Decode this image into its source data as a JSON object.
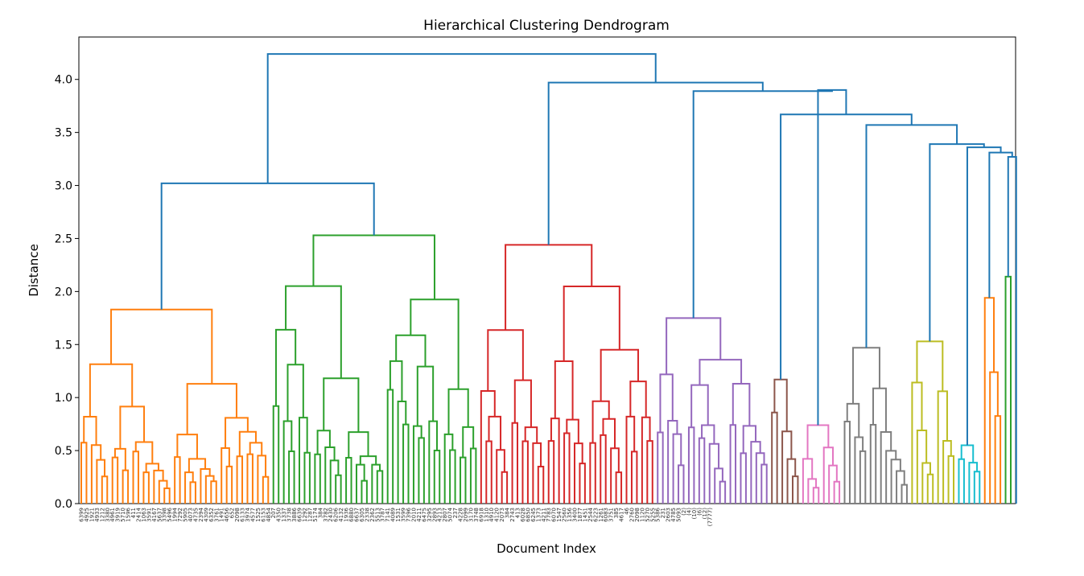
{
  "chart_data": {
    "type": "dendrogram",
    "title": "Hierarchical Clustering Dendrogram",
    "xlabel": "Document Index",
    "ylabel": "Distance",
    "ylim": [
      0,
      4.4
    ],
    "yticks": [
      0.0,
      0.5,
      1.0,
      1.5,
      2.0,
      2.5,
      3.0,
      3.5,
      4.0
    ],
    "ytick_labels": [
      "0.0",
      "0.5",
      "1.0",
      "1.5",
      "2.0",
      "2.5",
      "3.0",
      "3.5",
      "4.0"
    ],
    "grid": false,
    "above_threshold_color": "#1f77b4",
    "clusters": [
      {
        "color": "#ff7f0e",
        "leaves": 37,
        "root_height": 1.83
      },
      {
        "color": "#2ca02c",
        "leaves": 40,
        "root_height": 2.53
      },
      {
        "color": "#d62728",
        "leaves": 34,
        "root_height": 2.44
      },
      {
        "color": "#9467bd",
        "leaves": 22,
        "root_height": 1.75
      },
      {
        "color": "#8c564b",
        "leaves": 6,
        "root_height": 1.17
      },
      {
        "color": "#e377c2",
        "leaves": 8,
        "root_height": 0.74
      },
      {
        "color": "#7f7f7f",
        "leaves": 13,
        "root_height": 1.47
      },
      {
        "color": "#bcbd22",
        "leaves": 9,
        "root_height": 1.53
      },
      {
        "color": "#17becf",
        "leaves": 5,
        "root_height": 0.55
      },
      {
        "color": "#ff7f0e",
        "leaves": 4,
        "root_height": 1.94
      },
      {
        "color": "#2ca02c",
        "leaves": 2,
        "root_height": 2.14
      }
    ],
    "top_merges": [
      {
        "height": 4.24
      },
      {
        "height": 3.97
      },
      {
        "height": 3.9
      },
      {
        "height": 3.67
      },
      {
        "height": 3.57
      },
      {
        "height": 3.4
      },
      {
        "height": 3.39
      },
      {
        "height": 3.36
      },
      {
        "height": 3.31
      },
      {
        "height": 3.27
      },
      {
        "height": 3.02
      },
      {
        "height": 2.53
      },
      {
        "height": 2.44
      }
    ],
    "leaf_labels": [
      "6399",
      "4925",
      "1921",
      "4933",
      "1212",
      "3380",
      "4961",
      "3919",
      "5710",
      "1596",
      "411",
      "2414",
      "1063",
      "3591",
      "4167",
      "5637",
      "3398",
      "5496",
      "1994",
      "7292",
      "5905",
      "4073",
      "4735",
      "2394",
      "4309",
      "6352",
      "3761",
      "1491",
      "4656",
      "652",
      "2098",
      "6133",
      "3974",
      "4577",
      "1525",
      "6153",
      "4854",
      "207",
      "4350",
      "1337",
      "3738",
      "3886",
      "6639",
      "1292",
      "1287",
      "5174",
      "384",
      "3782",
      "2430",
      "6206",
      "4132",
      "1936",
      "6880",
      "6637",
      "6305",
      "2338",
      "2362",
      "5513",
      "3787",
      "7141",
      "4089",
      "1531",
      "3599",
      "7396",
      "2010",
      "4211",
      "6475",
      "3295",
      "2893",
      "4213",
      "2807",
      "5074",
      "237",
      "4228",
      "2099",
      "3170",
      "3748",
      "6918",
      "1310",
      "4910",
      "4120",
      "2073",
      "384",
      "2743",
      "413",
      "6028",
      "6850",
      "6245",
      "1373",
      "4211",
      "7783",
      "6070",
      "1547",
      "2560",
      "1356",
      "3400",
      "1877",
      "1451",
      "2544",
      "6223",
      "1261",
      "6083",
      "3751",
      "385",
      "4617",
      "46",
      "2760",
      "2098",
      "1120",
      "5270",
      "5255",
      "5386",
      "231",
      "2603",
      "4785",
      "5093",
      "(2)",
      "(4)",
      "(10)",
      "(6)",
      "(12)",
      "(7777)"
    ]
  }
}
